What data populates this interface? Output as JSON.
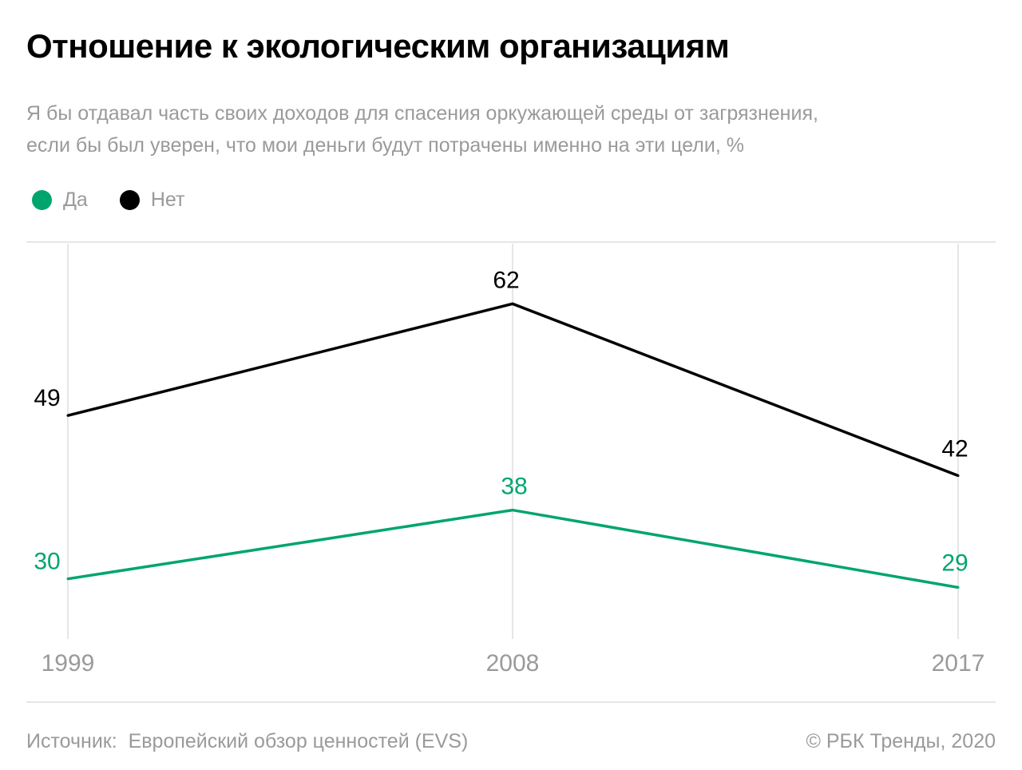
{
  "title": "Отношение к экологическим организациям",
  "subtitle_line1": "Я бы отдавал часть своих доходов для спасения оркужающей среды от загрязнения,",
  "subtitle_line2": "если бы был уверен, что мои деньги будут потрачены именно на эти цели, %",
  "source_label": "Источник:",
  "source_value": "Европейский обзор ценностей (EVS)",
  "copyright": "©  РБК Тренды, 2020",
  "chart_data": {
    "type": "line",
    "title": "Отношение к экологическим организациям",
    "x": [
      "1999",
      "2008",
      "2017"
    ],
    "series": [
      {
        "name": "Да",
        "color": "#00a56e",
        "values": [
          30,
          38,
          29
        ]
      },
      {
        "name": "Нет",
        "color": "#000000",
        "values": [
          49,
          62,
          42
        ]
      }
    ],
    "xlabel": "",
    "ylabel": "%",
    "ylim": [
      23,
      69
    ],
    "grid": "vertical",
    "legend": "top-left"
  }
}
